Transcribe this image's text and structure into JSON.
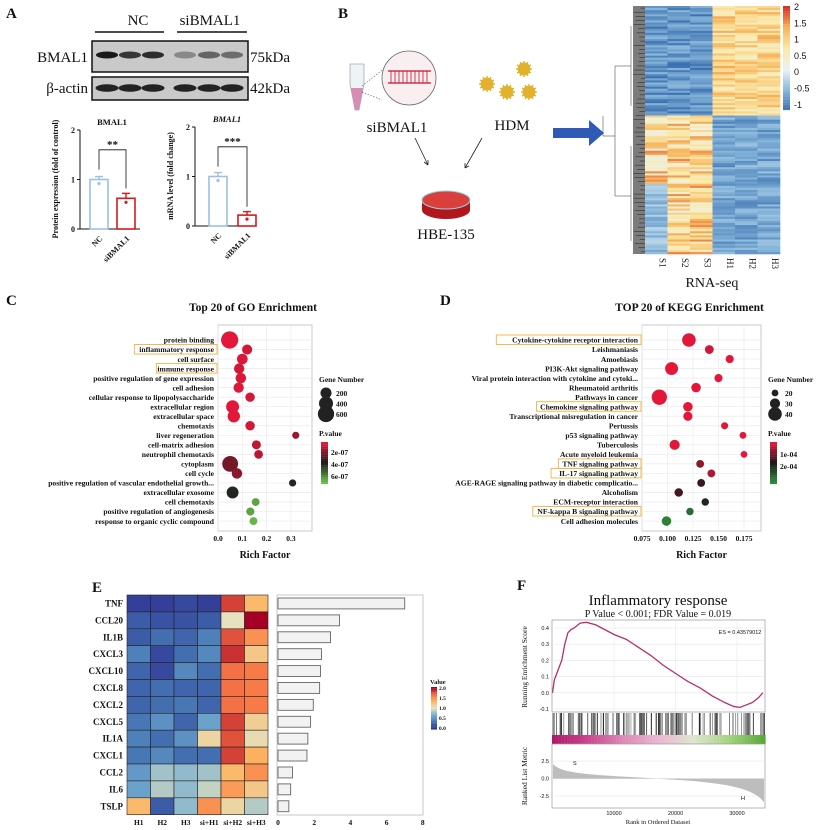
{
  "panels": {
    "a": "A",
    "b": "B",
    "c": "C",
    "d": "D",
    "e": "E",
    "f": "F"
  },
  "blot": {
    "groups": [
      "NC",
      "siBMAL1"
    ],
    "rows": [
      {
        "label": "BMAL1",
        "size": "75kDa"
      },
      {
        "label": "β-actin",
        "size": "42kDa"
      }
    ]
  },
  "schematic": {
    "sirna_label": "siBMAL1",
    "hdm_label": "HDM",
    "cell_label": "HBE-135",
    "arrow_color": "#2f5bb7"
  },
  "chart_data": [
    {
      "id": "protein",
      "type": "bar",
      "title": "BMAL1",
      "ylabel": "Protein expression (fold of control)",
      "categories": [
        "NC",
        "siBMAL1"
      ],
      "values": [
        1.0,
        0.62
      ],
      "errors": [
        0.06,
        0.1
      ],
      "ylim": [
        0,
        2
      ],
      "yticks": [
        "0",
        "1",
        "2"
      ],
      "significance": "**",
      "colors": [
        "#9dbfe3",
        "#d7191c"
      ]
    },
    {
      "id": "mrna",
      "type": "bar",
      "title": "BMAL1",
      "ylabel": "mRNA level (fold change)",
      "categories": [
        "NC",
        "siBMAL1"
      ],
      "values": [
        1.0,
        0.22
      ],
      "errors": [
        0.08,
        0.07
      ],
      "ylim": [
        0,
        2
      ],
      "yticks": [
        "0",
        "1",
        "2"
      ],
      "significance": "***",
      "colors": [
        "#9dbfe3",
        "#d7191c"
      ]
    },
    {
      "id": "rnaseq",
      "type": "heatmap",
      "xlabel": "RNA-seq",
      "columns": [
        "S1",
        "S2",
        "S3",
        "H1",
        "H2",
        "H3"
      ],
      "colorbar_ticks": [
        "2",
        "1.5",
        "1",
        "0.5",
        "0",
        "-0.5",
        "-1"
      ]
    },
    {
      "id": "go",
      "type": "scatter",
      "title": "Top 20 of GO Enrichment",
      "xlabel": "Rich Factor",
      "xlim": [
        -0.01,
        0.38
      ],
      "xticks": [
        "0.0",
        "0.1",
        "0.2",
        "0.3"
      ],
      "grid": true,
      "highlighted": [
        "inflammatory response",
        "immune response"
      ],
      "terms": [
        "protein binding",
        "inflammatory response",
        "cell surface",
        "immune response",
        "positive regulation of gene expression",
        "cell adhesion",
        "cellular response to lipopolysaccharide",
        "extracellular region",
        "extracellular space",
        "chemotaxis",
        "liver regeneration",
        "cell-matrix adhesion",
        "neutrophil chemotaxis",
        "cytoplasm",
        "cell cycle",
        "positive regulation of vascular endothelial growth...",
        "extracellular exosome",
        "cell chemotaxis",
        "positive regulation of angiogenesis",
        "response to organic cyclic compound"
      ],
      "rich_factor": [
        0.048,
        0.12,
        0.1,
        0.087,
        0.094,
        0.085,
        0.132,
        0.06,
        0.065,
        0.132,
        0.32,
        0.158,
        0.167,
        0.05,
        0.078,
        0.307,
        0.06,
        0.155,
        0.133,
        0.146
      ],
      "gene_number": [
        700,
        150,
        180,
        160,
        170,
        160,
        120,
        320,
        280,
        120,
        40,
        100,
        90,
        560,
        170,
        40,
        250,
        60,
        70,
        60
      ],
      "p_value": [
        1e-07,
        1.2e-07,
        1.1e-07,
        1.2e-07,
        1.1e-07,
        1.1e-07,
        1.2e-07,
        1e-07,
        1e-07,
        1.2e-07,
        2e-07,
        1.5e-07,
        1.6e-07,
        2.5e-07,
        2.2e-07,
        4e-07,
        4e-07,
        6e-07,
        6e-07,
        6.3e-07
      ],
      "legend": {
        "size_title": "Gene Number",
        "sizes": [
          200,
          400,
          600
        ],
        "color_title": "P.value",
        "color_ticks": [
          "2e-07",
          "4e-07",
          "6e-07"
        ],
        "color_low": "#e3173a",
        "color_mid": "#1a1a1a",
        "color_high": "#6cc24a",
        "placement": "right"
      }
    },
    {
      "id": "kegg",
      "type": "scatter",
      "title": "TOP 20 of KEGG Enrichment",
      "xlabel": "Rich Factor",
      "xlim": [
        0.074,
        0.186
      ],
      "xticks": [
        "0.075",
        "0.100",
        "0.125",
        "0.150",
        "0.175"
      ],
      "grid": true,
      "highlighted": [
        "Cytokine-cytokine receptor interaction",
        "Chemokine signaling pathway",
        "TNF signaling pathway",
        "IL-17 signaling pathway",
        "NF-kappa B signaling pathway"
      ],
      "terms": [
        "Cytokine-cytokine receptor interaction",
        "Leishmaniasis",
        "Amoebiasis",
        "PI3K-Akt signaling pathway",
        "Viral protein interaction with cytokine and cytoki...",
        "Rheumatoid arthritis",
        "Pathways in cancer",
        "Chemokine signaling pathway",
        "Transcriptional misregulation in cancer",
        "Pertussis",
        "p53 signaling pathway",
        "Tuberculosis",
        "Acute myeloid leukemia",
        "TNF signaling pathway",
        "IL-17 signaling pathway",
        "AGE-RAGE signaling pathway in diabetic complicatio...",
        "Alcoholism",
        "ECM-receptor interaction",
        "NF-kappa B signaling pathway",
        "Cell adhesion molecules"
      ],
      "rich_factor": [
        0.121,
        0.141,
        0.161,
        0.104,
        0.15,
        0.128,
        0.092,
        0.12,
        0.12,
        0.156,
        0.174,
        0.107,
        0.175,
        0.132,
        0.143,
        0.133,
        0.111,
        0.137,
        0.122,
        0.099
      ],
      "gene_number": [
        40,
        26,
        24,
        38,
        24,
        28,
        45,
        28,
        27,
        21,
        20,
        30,
        20,
        23,
        23,
        23,
        25,
        22,
        22,
        28
      ],
      "p_value": [
        3e-05,
        4e-05,
        3e-05,
        3e-05,
        3e-05,
        3e-05,
        3e-05,
        3e-05,
        3e-05,
        3e-05,
        3e-05,
        3e-05,
        3e-05,
        8e-05,
        6e-05,
        0.00013,
        0.00012,
        0.00016,
        0.00023,
        0.00025
      ],
      "legend": {
        "size_title": "Gene Number",
        "sizes": [
          20,
          30,
          40
        ],
        "color_title": "P.value",
        "color_ticks": [
          "1e-04",
          "2e-04"
        ],
        "color_low": "#e3173a",
        "color_mid": "#1a1a1a",
        "color_high": "#2e8b3a",
        "placement": "right"
      }
    },
    {
      "id": "cytokine-heatmap",
      "type": "heatmap",
      "rows": [
        "TNF",
        "CCL20",
        "IL1B",
        "CXCL3",
        "CXCL10",
        "CXCL8",
        "CXCL2",
        "CXCL5",
        "IL1A",
        "CXCL1",
        "CCL2",
        "IL6",
        "TSLP"
      ],
      "columns": [
        "H1",
        "H2",
        "H3",
        "si+H1",
        "si+H2",
        "si+H3"
      ],
      "values": [
        [
          0.05,
          0.05,
          0.1,
          0.05,
          1.8,
          1.3
        ],
        [
          0.2,
          0.15,
          0.15,
          0.2,
          1.0,
          2.0
        ],
        [
          0.2,
          0.3,
          0.25,
          0.4,
          1.75,
          1.5
        ],
        [
          0.4,
          0.1,
          0.3,
          0.45,
          1.85,
          1.2
        ],
        [
          0.25,
          0.1,
          0.45,
          0.3,
          1.65,
          1.6
        ],
        [
          0.25,
          0.3,
          0.25,
          0.25,
          1.65,
          1.6
        ],
        [
          0.25,
          0.3,
          0.35,
          0.25,
          1.65,
          1.6
        ],
        [
          0.35,
          0.5,
          0.25,
          0.6,
          1.8,
          1.15
        ],
        [
          0.4,
          0.3,
          0.5,
          1.1,
          1.75,
          1.05
        ],
        [
          0.35,
          0.45,
          0.3,
          0.3,
          1.8,
          1.35
        ],
        [
          0.55,
          0.8,
          0.75,
          0.8,
          1.3,
          1.5
        ],
        [
          0.6,
          0.85,
          0.75,
          0.9,
          1.45,
          1.2
        ],
        [
          1.3,
          0.2,
          0.75,
          1.5,
          1.1,
          0.85
        ]
      ],
      "vlim": [
        0,
        2
      ],
      "legend": {
        "title": "Value",
        "ticks": [
          "2.0",
          "1.5",
          "1.0",
          "0.5",
          "0.0"
        ]
      }
    },
    {
      "id": "cytokine-bars",
      "type": "bar",
      "orientation": "horizontal",
      "categories": [
        "TNF",
        "CCL20",
        "IL1B",
        "CXCL3",
        "CXCL10",
        "CXCL8",
        "CXCL2",
        "CXCL5",
        "IL1A",
        "CXCL1",
        "CCL2",
        "IL6",
        "TSLP"
      ],
      "values": [
        7.0,
        3.4,
        2.9,
        2.4,
        2.35,
        2.3,
        1.95,
        1.8,
        1.65,
        1.6,
        0.8,
        0.7,
        0.6
      ],
      "xlim": [
        0,
        8
      ],
      "xticks": [
        "0",
        "2",
        "4",
        "6",
        "8"
      ]
    },
    {
      "id": "gsea",
      "type": "line",
      "title": "Inflammatory response",
      "subtitle": "P Value < 0.001; FDR Value = 0.019",
      "ylabel": "Running Enrichment Score",
      "ylabel2": "Ranked List Metric",
      "xlabel": "Rank in Ordered Dataset",
      "annotation": "ES = 0.43579012",
      "x": [
        0,
        300,
        800,
        1500,
        2000,
        2500,
        3000,
        3500,
        4500,
        5500,
        7000,
        8500,
        10000,
        12000,
        14000,
        16000,
        18000,
        20000,
        22000,
        24000,
        26000,
        28000,
        29500,
        30500,
        31500,
        32500,
        33500,
        34200
      ],
      "y": [
        0,
        0.08,
        0.13,
        0.2,
        0.3,
        0.37,
        0.39,
        0.4,
        0.43,
        0.435,
        0.42,
        0.39,
        0.36,
        0.33,
        0.28,
        0.23,
        0.17,
        0.12,
        0.07,
        0.03,
        -0.02,
        -0.06,
        -0.085,
        -0.09,
        -0.075,
        -0.06,
        -0.03,
        0.0
      ],
      "ylim": [
        -0.12,
        0.46
      ],
      "yticks": [
        "0.4",
        "0.3",
        "0.2",
        "0.1",
        "0.0",
        "-0.1"
      ],
      "xticks": [
        "10000",
        "20000",
        "30000"
      ],
      "metric_ticks": [
        "2.5",
        "0.0",
        "-2.5"
      ],
      "metric_labels": {
        "top": "S",
        "bottom": "H"
      },
      "line_color": "#b5306d"
    }
  ]
}
